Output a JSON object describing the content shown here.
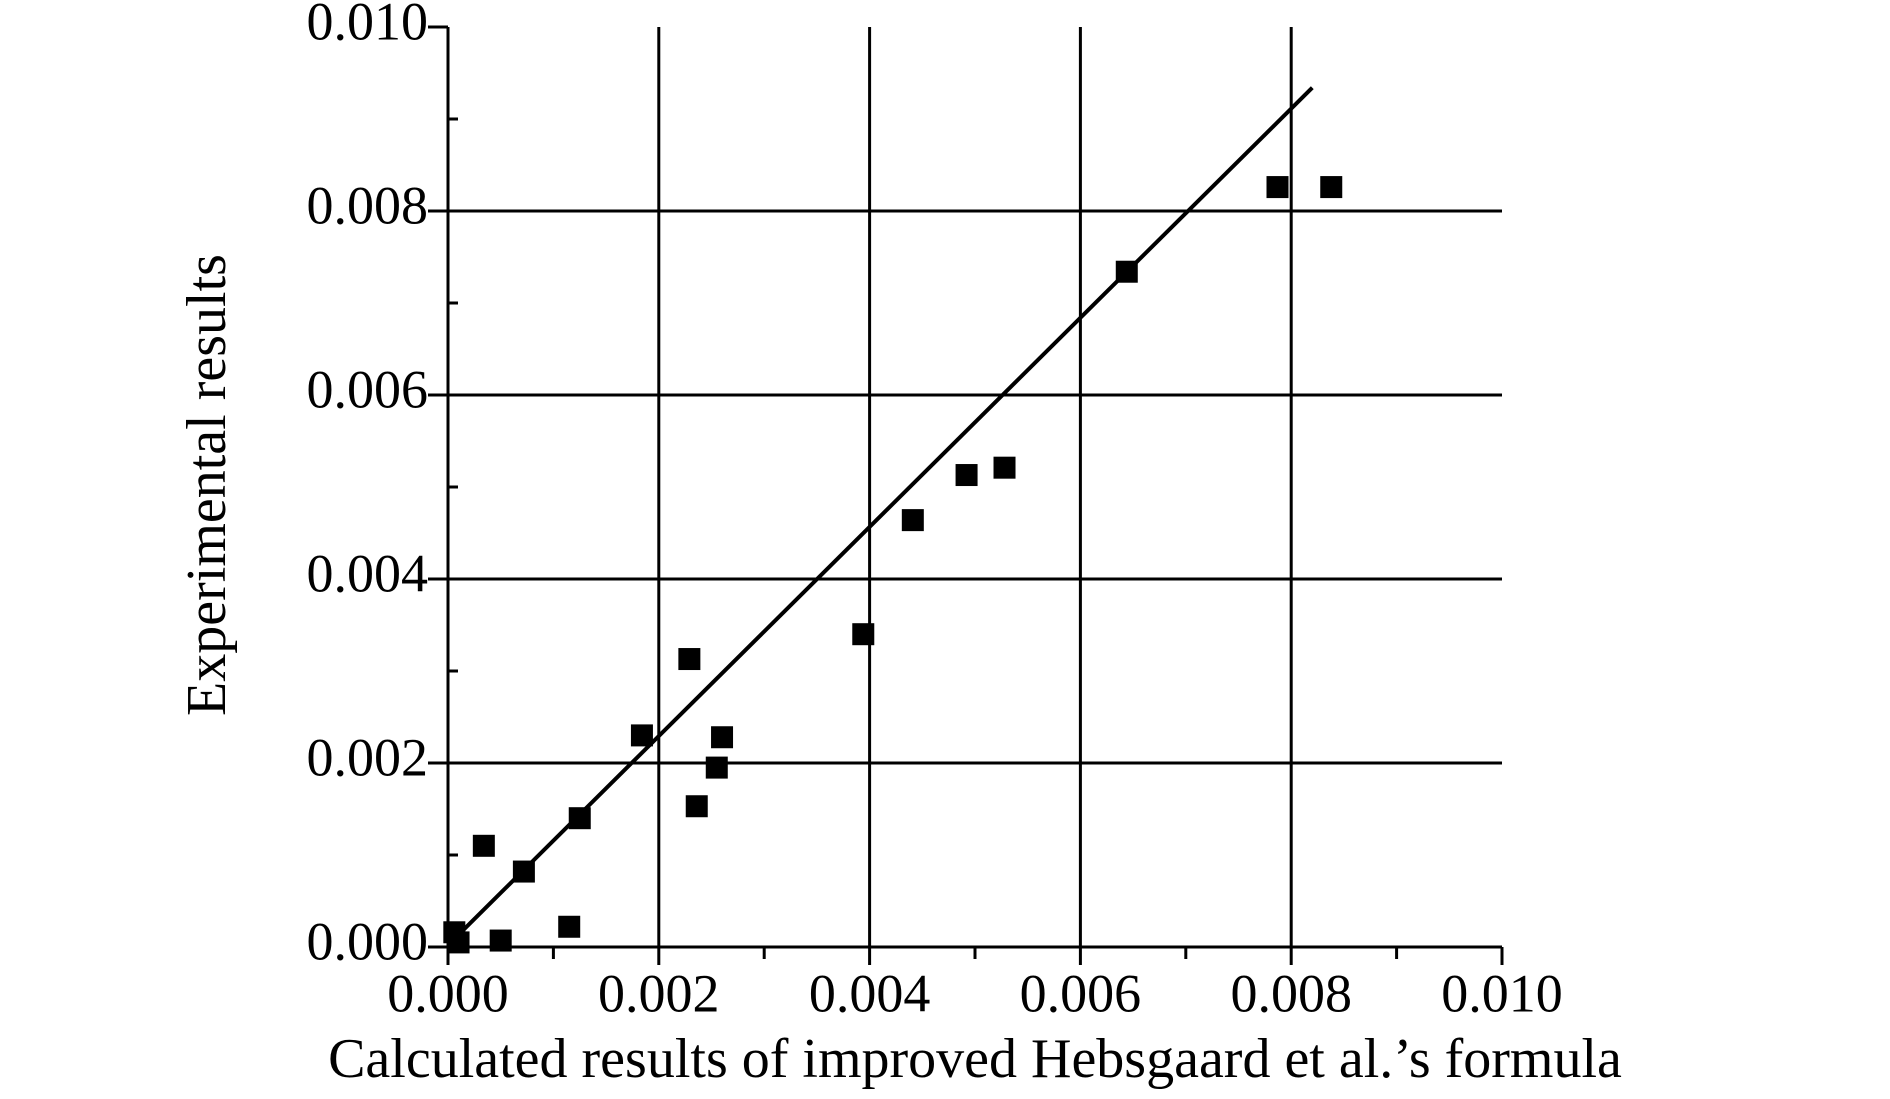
{
  "chart_data": {
    "type": "scatter",
    "x_label": "Calculated results of improved Hebsgaard et al.’s formula",
    "y_label": "Experimental results",
    "xlim": [
      0,
      0.01
    ],
    "ylim": [
      0,
      0.01
    ],
    "xticks": [
      {
        "value": 0,
        "label": "0.000"
      },
      {
        "value": 0.002,
        "label": "0.002"
      },
      {
        "value": 0.004,
        "label": "0.004"
      },
      {
        "value": 0.006,
        "label": "0.006"
      },
      {
        "value": 0.008,
        "label": "0.008"
      },
      {
        "value": 0.01,
        "label": "0.010"
      }
    ],
    "yticks": [
      {
        "value": 0,
        "label": "0.000"
      },
      {
        "value": 0.002,
        "label": "0.002"
      },
      {
        "value": 0.004,
        "label": "0.004"
      },
      {
        "value": 0.006,
        "label": "0.006"
      },
      {
        "value": 0.008,
        "label": "0.008"
      },
      {
        "value": 0.01,
        "label": "0.010"
      }
    ],
    "xminorticks": [
      0.001,
      0.003,
      0.005,
      0.007,
      0.009
    ],
    "yminorticks": [
      0.001,
      0.003,
      0.005,
      0.007,
      0.009
    ],
    "grid": true,
    "series": [
      {
        "type": "scatter",
        "color": "#000000",
        "x": [
          6e-05,
          0.0001,
          0.00034,
          0.0005,
          0.00072,
          0.00115,
          0.00125,
          0.00184,
          0.00229,
          0.00236,
          0.00255,
          0.0026,
          0.00394,
          0.00441,
          0.00492,
          0.00528,
          0.00644,
          0.00787,
          0.00838
        ],
        "values": [
          0.00016,
          5e-05,
          0.0011,
          7e-05,
          0.00082,
          0.00022,
          0.0014,
          0.0023,
          0.00313,
          0.00153,
          0.00195,
          0.00228,
          0.0034,
          0.00464,
          0.00513,
          0.00521,
          0.00734,
          0.00826,
          0.00826
        ]
      },
      {
        "type": "line",
        "color": "#000000",
        "x": [
          0,
          0.0082
        ],
        "values": [
          2e-05,
          0.00934
        ]
      }
    ]
  }
}
